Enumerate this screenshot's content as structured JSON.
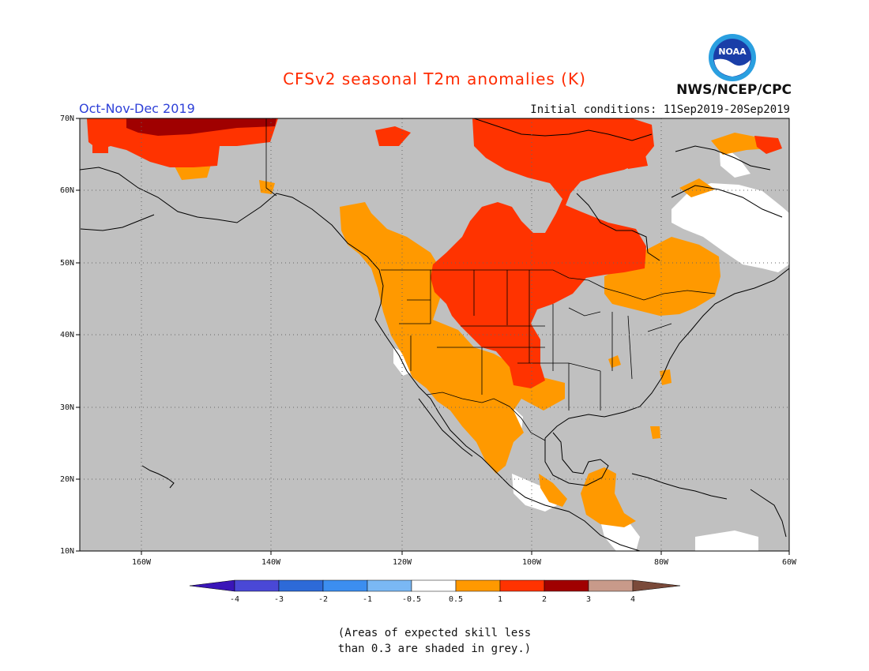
{
  "header": {
    "title": "CFSv2 seasonal T2m anomalies (K)",
    "period": "Oct-Nov-Dec 2019",
    "initial_conditions": "Initial conditions: 11Sep2019-20Sep2019",
    "agency": "NWS/NCEP/CPC",
    "logo_text": "NOAA"
  },
  "map": {
    "lat_labels": [
      "70N",
      "60N",
      "50N",
      "40N",
      "30N",
      "20N",
      "10N"
    ],
    "lon_labels": [
      "160W",
      "140W",
      "120W",
      "100W",
      "80W",
      "60W"
    ],
    "grey_meaning": "skill < 0.3"
  },
  "legend": {
    "ticks": [
      "-4",
      "-3",
      "-2",
      "-1",
      "-0.5",
      "0.5",
      "1",
      "2",
      "3",
      "4"
    ],
    "colors": [
      "#3a16b8",
      "#4a48d6",
      "#2d6ad8",
      "#3c8ef0",
      "#7ab8f4",
      "#ffffff",
      "#ff9900",
      "#ff3300",
      "#a00000",
      "#c89a8a",
      "#7a4a3a"
    ]
  },
  "footnote": {
    "line1": "(Areas of expected skill less",
    "line2": "than 0.3 are shaded in grey.)"
  }
}
